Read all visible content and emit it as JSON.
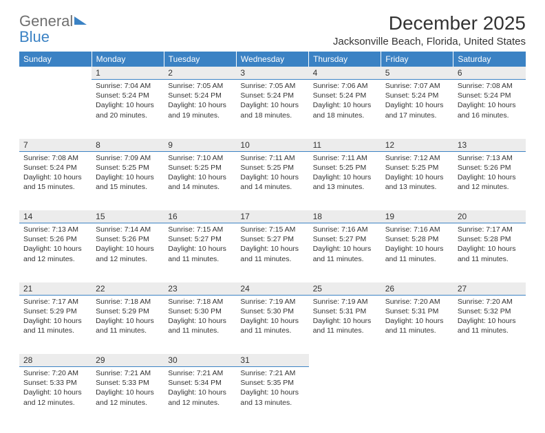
{
  "logo": {
    "text_gray": "General",
    "text_blue": "Blue"
  },
  "title": "December 2025",
  "location": "Jacksonville Beach, Florida, United States",
  "colors": {
    "header_bg": "#3b82c4",
    "header_text": "#ffffff",
    "daynum_bg": "#ececec",
    "daynum_border": "#3b82c4",
    "body_text": "#333333",
    "logo_gray": "#6f6f6f",
    "logo_blue": "#3b82c4",
    "page_bg": "#ffffff"
  },
  "typography": {
    "title_fontsize": 28,
    "location_fontsize": 15,
    "dayheader_fontsize": 12,
    "daynum_fontsize": 12,
    "cell_fontsize": 10.5
  },
  "day_headers": [
    "Sunday",
    "Monday",
    "Tuesday",
    "Wednesday",
    "Thursday",
    "Friday",
    "Saturday"
  ],
  "weeks": [
    {
      "nums": [
        "",
        "1",
        "2",
        "3",
        "4",
        "5",
        "6"
      ],
      "cells": [
        null,
        {
          "sunrise": "7:04 AM",
          "sunset": "5:24 PM",
          "daylight": "10 hours and 20 minutes."
        },
        {
          "sunrise": "7:05 AM",
          "sunset": "5:24 PM",
          "daylight": "10 hours and 19 minutes."
        },
        {
          "sunrise": "7:05 AM",
          "sunset": "5:24 PM",
          "daylight": "10 hours and 18 minutes."
        },
        {
          "sunrise": "7:06 AM",
          "sunset": "5:24 PM",
          "daylight": "10 hours and 18 minutes."
        },
        {
          "sunrise": "7:07 AM",
          "sunset": "5:24 PM",
          "daylight": "10 hours and 17 minutes."
        },
        {
          "sunrise": "7:08 AM",
          "sunset": "5:24 PM",
          "daylight": "10 hours and 16 minutes."
        }
      ]
    },
    {
      "nums": [
        "7",
        "8",
        "9",
        "10",
        "11",
        "12",
        "13"
      ],
      "cells": [
        {
          "sunrise": "7:08 AM",
          "sunset": "5:24 PM",
          "daylight": "10 hours and 15 minutes."
        },
        {
          "sunrise": "7:09 AM",
          "sunset": "5:25 PM",
          "daylight": "10 hours and 15 minutes."
        },
        {
          "sunrise": "7:10 AM",
          "sunset": "5:25 PM",
          "daylight": "10 hours and 14 minutes."
        },
        {
          "sunrise": "7:11 AM",
          "sunset": "5:25 PM",
          "daylight": "10 hours and 14 minutes."
        },
        {
          "sunrise": "7:11 AM",
          "sunset": "5:25 PM",
          "daylight": "10 hours and 13 minutes."
        },
        {
          "sunrise": "7:12 AM",
          "sunset": "5:25 PM",
          "daylight": "10 hours and 13 minutes."
        },
        {
          "sunrise": "7:13 AM",
          "sunset": "5:26 PM",
          "daylight": "10 hours and 12 minutes."
        }
      ]
    },
    {
      "nums": [
        "14",
        "15",
        "16",
        "17",
        "18",
        "19",
        "20"
      ],
      "cells": [
        {
          "sunrise": "7:13 AM",
          "sunset": "5:26 PM",
          "daylight": "10 hours and 12 minutes."
        },
        {
          "sunrise": "7:14 AM",
          "sunset": "5:26 PM",
          "daylight": "10 hours and 12 minutes."
        },
        {
          "sunrise": "7:15 AM",
          "sunset": "5:27 PM",
          "daylight": "10 hours and 11 minutes."
        },
        {
          "sunrise": "7:15 AM",
          "sunset": "5:27 PM",
          "daylight": "10 hours and 11 minutes."
        },
        {
          "sunrise": "7:16 AM",
          "sunset": "5:27 PM",
          "daylight": "10 hours and 11 minutes."
        },
        {
          "sunrise": "7:16 AM",
          "sunset": "5:28 PM",
          "daylight": "10 hours and 11 minutes."
        },
        {
          "sunrise": "7:17 AM",
          "sunset": "5:28 PM",
          "daylight": "10 hours and 11 minutes."
        }
      ]
    },
    {
      "nums": [
        "21",
        "22",
        "23",
        "24",
        "25",
        "26",
        "27"
      ],
      "cells": [
        {
          "sunrise": "7:17 AM",
          "sunset": "5:29 PM",
          "daylight": "10 hours and 11 minutes."
        },
        {
          "sunrise": "7:18 AM",
          "sunset": "5:29 PM",
          "daylight": "10 hours and 11 minutes."
        },
        {
          "sunrise": "7:18 AM",
          "sunset": "5:30 PM",
          "daylight": "10 hours and 11 minutes."
        },
        {
          "sunrise": "7:19 AM",
          "sunset": "5:30 PM",
          "daylight": "10 hours and 11 minutes."
        },
        {
          "sunrise": "7:19 AM",
          "sunset": "5:31 PM",
          "daylight": "10 hours and 11 minutes."
        },
        {
          "sunrise": "7:20 AM",
          "sunset": "5:31 PM",
          "daylight": "10 hours and 11 minutes."
        },
        {
          "sunrise": "7:20 AM",
          "sunset": "5:32 PM",
          "daylight": "10 hours and 11 minutes."
        }
      ]
    },
    {
      "nums": [
        "28",
        "29",
        "30",
        "31",
        "",
        "",
        ""
      ],
      "cells": [
        {
          "sunrise": "7:20 AM",
          "sunset": "5:33 PM",
          "daylight": "10 hours and 12 minutes."
        },
        {
          "sunrise": "7:21 AM",
          "sunset": "5:33 PM",
          "daylight": "10 hours and 12 minutes."
        },
        {
          "sunrise": "7:21 AM",
          "sunset": "5:34 PM",
          "daylight": "10 hours and 12 minutes."
        },
        {
          "sunrise": "7:21 AM",
          "sunset": "5:35 PM",
          "daylight": "10 hours and 13 minutes."
        },
        null,
        null,
        null
      ]
    }
  ],
  "labels": {
    "sunrise": "Sunrise: ",
    "sunset": "Sunset: ",
    "daylight": "Daylight: "
  }
}
